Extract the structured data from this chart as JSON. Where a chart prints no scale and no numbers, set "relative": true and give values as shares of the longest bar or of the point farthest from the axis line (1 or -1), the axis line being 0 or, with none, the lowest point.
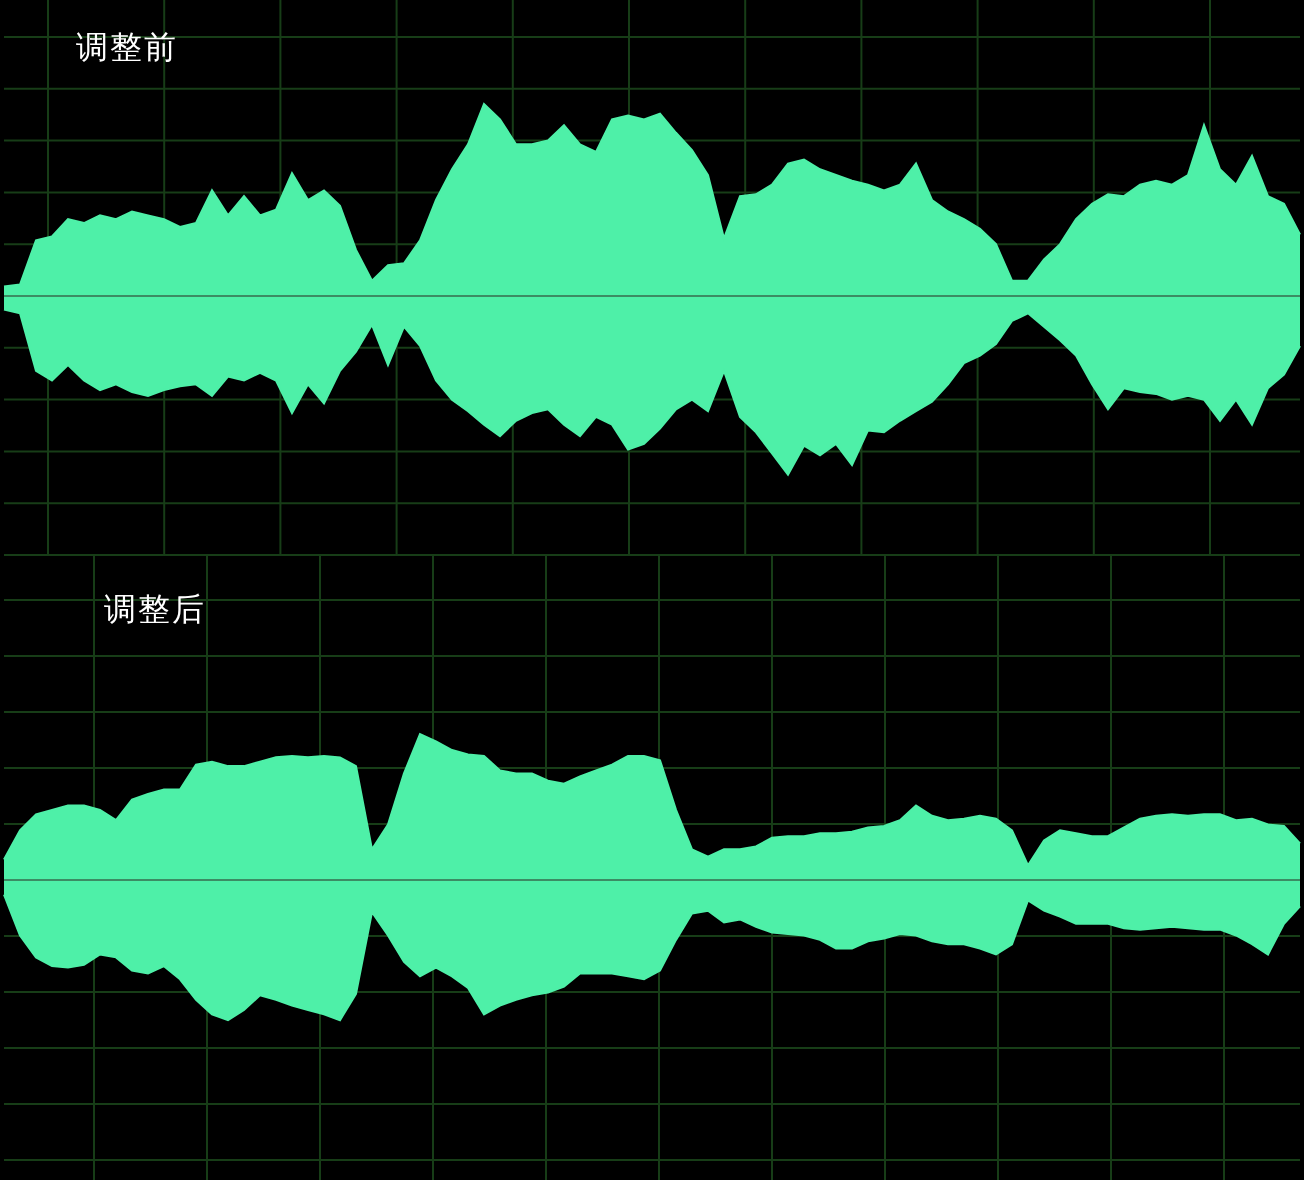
{
  "chart_data": [
    {
      "type": "area",
      "title": "调整前",
      "relative": true,
      "grid": true,
      "categories": [
        null,
        null,
        null,
        null,
        null,
        null,
        null,
        null,
        null,
        null,
        null,
        null,
        null,
        null,
        null,
        null,
        null,
        null,
        null,
        null,
        null,
        null,
        null,
        null,
        null,
        null,
        null,
        null,
        null,
        null,
        null,
        null,
        null,
        null,
        null,
        null,
        null,
        null,
        null,
        null,
        null,
        null,
        null,
        null,
        null,
        null,
        null,
        null,
        null,
        null,
        null,
        null,
        null,
        null,
        null,
        null,
        null,
        null,
        null,
        null,
        null,
        null,
        null,
        null,
        null,
        null,
        null,
        null,
        null,
        null,
        null,
        null,
        null,
        null,
        null,
        null,
        null,
        null,
        null,
        null,
        null,
        null
      ],
      "series": [
        {
          "color": "#4ef0a8",
          "values": [
            0.05,
            0.06,
            0.29,
            0.31,
            0.4,
            0.38,
            0.42,
            0.4,
            0.44,
            0.42,
            0.4,
            0.36,
            0.38,
            0.55,
            0.42,
            0.52,
            0.42,
            0.45,
            0.64,
            0.5,
            0.55,
            0.47,
            0.24,
            0.08,
            0.16,
            0.17,
            0.29,
            0.5,
            0.66,
            0.79,
            1,
            0.92,
            0.79,
            0.79,
            0.81,
            0.89,
            0.79,
            0.75,
            0.92,
            0.94,
            0.92,
            0.95,
            0.85,
            0.76,
            0.63,
            0.3,
            0.52,
            0.53,
            0.58,
            0.69,
            0.71,
            0.66,
            0.63,
            0.6,
            0.58,
            0.55,
            0.58,
            0.69,
            0.5,
            0.44,
            0.4,
            0.35,
            0.27,
            0.08,
            0.08,
            0.19,
            0.27,
            0.4,
            0.48,
            0.53,
            0.52,
            0.58,
            0.6,
            0.58,
            0.63,
            0.89,
            0.66,
            0.58,
            0.73,
            0.52,
            0.48,
            0.32
          ]
        },
        {
          "color": "#4ef0a8",
          "values": [
            -0.07,
            -0.09,
            -0.39,
            -0.44,
            -0.36,
            -0.44,
            -0.49,
            -0.46,
            -0.5,
            -0.52,
            -0.49,
            -0.47,
            -0.46,
            -0.52,
            -0.42,
            -0.44,
            -0.4,
            -0.44,
            -0.61,
            -0.46,
            -0.56,
            -0.39,
            -0.29,
            -0.15,
            -0.36,
            -0.16,
            -0.26,
            -0.44,
            -0.54,
            -0.6,
            -0.67,
            -0.73,
            -0.65,
            -0.61,
            -0.59,
            -0.67,
            -0.73,
            -0.63,
            -0.67,
            -0.8,
            -0.77,
            -0.69,
            -0.59,
            -0.54,
            -0.6,
            -0.39,
            -0.63,
            -0.71,
            -0.82,
            -0.93,
            -0.78,
            -0.83,
            -0.77,
            -0.88,
            -0.7,
            -0.71,
            -0.65,
            -0.6,
            -0.55,
            -0.46,
            -0.35,
            -0.31,
            -0.25,
            -0.13,
            -0.09,
            -0.16,
            -0.23,
            -0.31,
            -0.46,
            -0.59,
            -0.48,
            -0.5,
            -0.51,
            -0.54,
            -0.52,
            -0.54,
            -0.65,
            -0.54,
            -0.67,
            -0.48,
            -0.41,
            -0.26
          ]
        }
      ],
      "ref_lines": [
        {
          "axis": "y",
          "value": 0,
          "color": "#3c8c64"
        }
      ]
    },
    {
      "type": "area",
      "title": "调整后",
      "relative": true,
      "grid": true,
      "categories": [
        null,
        null,
        null,
        null,
        null,
        null,
        null,
        null,
        null,
        null,
        null,
        null,
        null,
        null,
        null,
        null,
        null,
        null,
        null,
        null,
        null,
        null,
        null,
        null,
        null,
        null,
        null,
        null,
        null,
        null,
        null,
        null,
        null,
        null,
        null,
        null,
        null,
        null,
        null,
        null,
        null,
        null,
        null,
        null,
        null,
        null,
        null,
        null,
        null,
        null,
        null,
        null,
        null,
        null,
        null,
        null,
        null,
        null,
        null,
        null,
        null,
        null,
        null,
        null,
        null,
        null,
        null,
        null,
        null,
        null,
        null,
        null,
        null,
        null,
        null,
        null,
        null,
        null,
        null,
        null,
        null,
        null
      ],
      "series": [
        {
          "color": "#4ef0a8",
          "values": [
            0.14,
            0.34,
            0.45,
            0.48,
            0.51,
            0.51,
            0.48,
            0.41,
            0.55,
            0.59,
            0.62,
            0.62,
            0.79,
            0.81,
            0.78,
            0.78,
            0.81,
            0.84,
            0.85,
            0.84,
            0.85,
            0.84,
            0.78,
            0.21,
            0.38,
            0.73,
            1,
            0.95,
            0.89,
            0.86,
            0.85,
            0.75,
            0.73,
            0.73,
            0.68,
            0.66,
            0.71,
            0.75,
            0.79,
            0.85,
            0.85,
            0.82,
            0.48,
            0.21,
            0.16,
            0.21,
            0.21,
            0.23,
            0.29,
            0.3,
            0.3,
            0.32,
            0.32,
            0.33,
            0.36,
            0.37,
            0.41,
            0.51,
            0.44,
            0.41,
            0.42,
            0.44,
            0.42,
            0.34,
            0.1,
            0.27,
            0.34,
            0.32,
            0.3,
            0.3,
            0.36,
            0.42,
            0.44,
            0.45,
            0.44,
            0.45,
            0.45,
            0.41,
            0.42,
            0.38,
            0.37,
            0.25
          ]
        },
        {
          "color": "#4ef0a8",
          "values": [
            -0.1,
            -0.38,
            -0.53,
            -0.59,
            -0.6,
            -0.58,
            -0.51,
            -0.53,
            -0.62,
            -0.64,
            -0.59,
            -0.68,
            -0.82,
            -0.92,
            -0.96,
            -0.89,
            -0.79,
            -0.82,
            -0.86,
            -0.89,
            -0.92,
            -0.96,
            -0.78,
            -0.22,
            -0.38,
            -0.56,
            -0.66,
            -0.6,
            -0.66,
            -0.74,
            -0.92,
            -0.86,
            -0.82,
            -0.79,
            -0.77,
            -0.73,
            -0.64,
            -0.64,
            -0.64,
            -0.66,
            -0.68,
            -0.62,
            -0.41,
            -0.23,
            -0.21,
            -0.29,
            -0.27,
            -0.32,
            -0.36,
            -0.37,
            -0.38,
            -0.41,
            -0.47,
            -0.47,
            -0.42,
            -0.4,
            -0.37,
            -0.38,
            -0.42,
            -0.44,
            -0.44,
            -0.47,
            -0.51,
            -0.44,
            -0.14,
            -0.21,
            -0.25,
            -0.3,
            -0.3,
            -0.3,
            -0.33,
            -0.34,
            -0.33,
            -0.32,
            -0.33,
            -0.34,
            -0.34,
            -0.38,
            -0.44,
            -0.51,
            -0.3,
            -0.18
          ]
        }
      ],
      "ref_lines": [
        {
          "axis": "y",
          "value": 0,
          "color": "#3c8c64"
        }
      ]
    }
  ]
}
